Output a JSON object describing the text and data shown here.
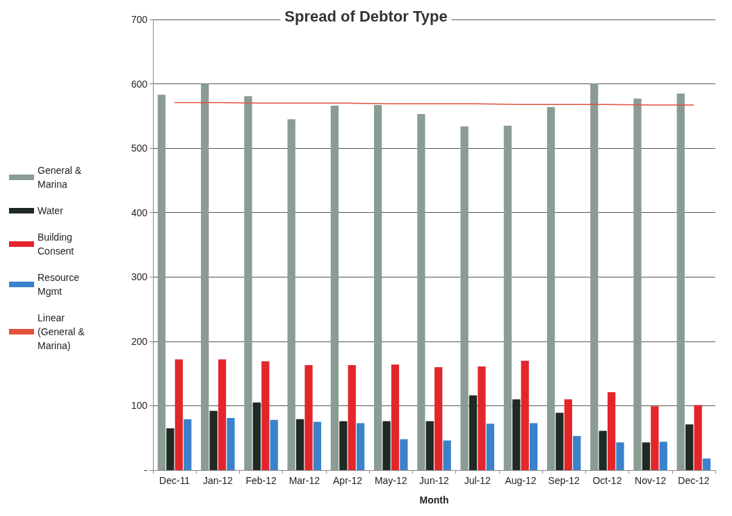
{
  "chart_data": {
    "type": "bar",
    "title": "Spread of Debtor Type",
    "xlabel": "Month",
    "categories": [
      "Dec-11",
      "Jan-12",
      "Feb-12",
      "Mar-12",
      "Apr-12",
      "May-12",
      "Jun-12",
      "Jul-12",
      "Aug-12",
      "Sep-12",
      "Oct-12",
      "Nov-12",
      "Dec-12"
    ],
    "series": [
      {
        "name": "General & Marina",
        "color": "#8a9c94",
        "values": [
          583,
          600,
          581,
          545,
          566,
          567,
          553,
          534,
          535,
          564,
          601,
          577,
          585
        ]
      },
      {
        "name": "Water",
        "color": "#1f2a24",
        "values": [
          65,
          92,
          105,
          79,
          76,
          76,
          76,
          116,
          110,
          89,
          61,
          43,
          71
        ]
      },
      {
        "name": "Building Consent",
        "color": "#e3262b",
        "values": [
          172,
          172,
          169,
          163,
          163,
          164,
          160,
          161,
          170,
          110,
          121,
          99,
          101
        ]
      },
      {
        "name": "Resource Mgmt",
        "color": "#3a82cc",
        "values": [
          79,
          81,
          78,
          75,
          73,
          48,
          46,
          72,
          73,
          53,
          43,
          44,
          18
        ]
      },
      {
        "name": "Linear (General & Marina)",
        "type": "line",
        "color": "#e0523a",
        "values": [
          571,
          571,
          570,
          570,
          570,
          569,
          569,
          569,
          568,
          568,
          568,
          567,
          567
        ]
      }
    ],
    "ylim": [
      0,
      700
    ],
    "yticks": [
      {
        "value": 0,
        "label": "-"
      },
      100,
      200,
      300,
      400,
      500,
      600,
      700
    ],
    "grid": "y",
    "legend": "left"
  }
}
